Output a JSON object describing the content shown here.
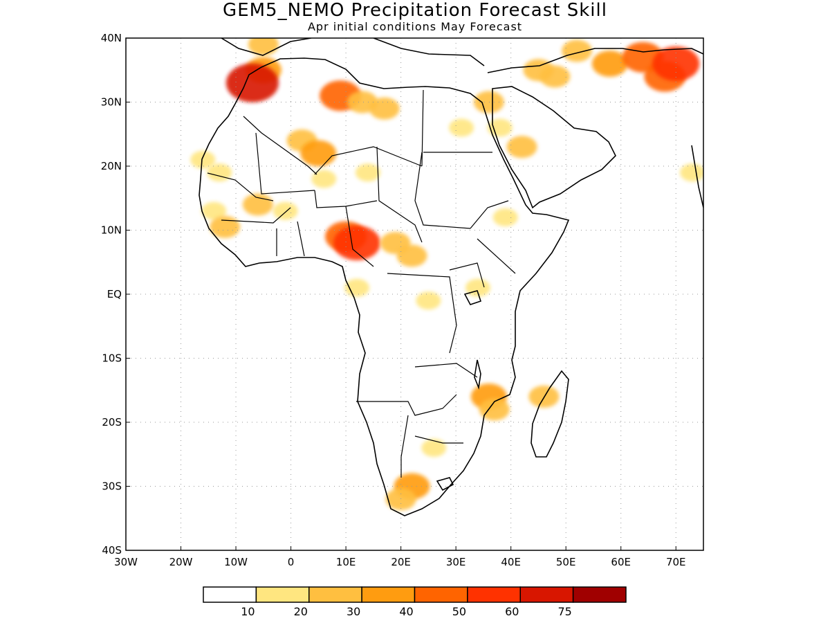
{
  "figure": {
    "title": "GEM5_NEMO Precipitation Forecast Skill",
    "subtitle": "Apr initial conditions   May Forecast"
  },
  "map_data": {
    "type": "filled-contour-map",
    "region": "Africa and Middle East",
    "lon_range": [
      -30,
      75
    ],
    "lat_range": [
      -40,
      40
    ],
    "grid": true,
    "x_ticks": [
      "30W",
      "20W",
      "10W",
      "0",
      "10E",
      "20E",
      "30E",
      "40E",
      "50E",
      "60E",
      "70E"
    ],
    "y_ticks": [
      "40N",
      "30N",
      "20N",
      "10N",
      "EQ",
      "10S",
      "20S",
      "30S",
      "40S"
    ],
    "colorbar": {
      "placement": "bottom",
      "levels": [
        "10",
        "20",
        "30",
        "40",
        "50",
        "60",
        "75"
      ],
      "colors": [
        "#ffffff",
        "#ffe680",
        "#ffbf40",
        "#ff9c10",
        "#ff6400",
        "#ff3200",
        "#d81600",
        "#a00000"
      ]
    },
    "skill_patches": [
      {
        "lon": -16,
        "lat": 21,
        "level": 1
      },
      {
        "lon": -13,
        "lat": 19,
        "level": 1
      },
      {
        "lon": -14,
        "lat": 13,
        "level": 1
      },
      {
        "lon": -12,
        "lat": 10.5,
        "level": 2
      },
      {
        "lon": -5,
        "lat": 35,
        "level": 3
      },
      {
        "lon": -7,
        "lat": 33,
        "level": 6
      },
      {
        "lon": -5,
        "lat": 39,
        "level": 2
      },
      {
        "lon": 2,
        "lat": 24,
        "level": 2
      },
      {
        "lon": 5,
        "lat": 22,
        "level": 3
      },
      {
        "lon": -1,
        "lat": 13,
        "level": 1
      },
      {
        "lon": -6,
        "lat": 14,
        "level": 2
      },
      {
        "lon": 6,
        "lat": 18,
        "level": 1
      },
      {
        "lon": 9,
        "lat": 31,
        "level": 4
      },
      {
        "lon": 13,
        "lat": 30,
        "level": 2
      },
      {
        "lon": 17,
        "lat": 29,
        "level": 2
      },
      {
        "lon": 10,
        "lat": 9,
        "level": 4
      },
      {
        "lon": 12,
        "lat": 8,
        "level": 5
      },
      {
        "lon": 14,
        "lat": 19,
        "level": 1
      },
      {
        "lon": 19,
        "lat": 8,
        "level": 2
      },
      {
        "lon": 22,
        "lat": 6,
        "level": 2
      },
      {
        "lon": 12,
        "lat": 1,
        "level": 1
      },
      {
        "lon": 25,
        "lat": -1,
        "level": 1
      },
      {
        "lon": 34,
        "lat": 1,
        "level": 1
      },
      {
        "lon": 39,
        "lat": 12,
        "level": 1
      },
      {
        "lon": 42,
        "lat": 23,
        "level": 2
      },
      {
        "lon": 36,
        "lat": 30,
        "level": 2
      },
      {
        "lon": 45,
        "lat": 35,
        "level": 2
      },
      {
        "lon": 48,
        "lat": 34,
        "level": 2
      },
      {
        "lon": 58,
        "lat": 36,
        "level": 3
      },
      {
        "lon": 64,
        "lat": 37,
        "level": 4
      },
      {
        "lon": 68,
        "lat": 34,
        "level": 4
      },
      {
        "lon": 70,
        "lat": 36,
        "level": 5
      },
      {
        "lon": 52,
        "lat": 38,
        "level": 2
      },
      {
        "lon": 36,
        "lat": -16,
        "level": 3
      },
      {
        "lon": 37,
        "lat": -18,
        "level": 2
      },
      {
        "lon": 26,
        "lat": -24,
        "level": 1
      },
      {
        "lon": 22,
        "lat": -30,
        "level": 3
      },
      {
        "lon": 20,
        "lat": -32,
        "level": 2
      },
      {
        "lon": 46,
        "lat": -16,
        "level": 2
      },
      {
        "lon": 73,
        "lat": 19,
        "level": 1
      },
      {
        "lon": 31,
        "lat": 26,
        "level": 1
      },
      {
        "lon": 38,
        "lat": 26,
        "level": 1
      }
    ]
  }
}
